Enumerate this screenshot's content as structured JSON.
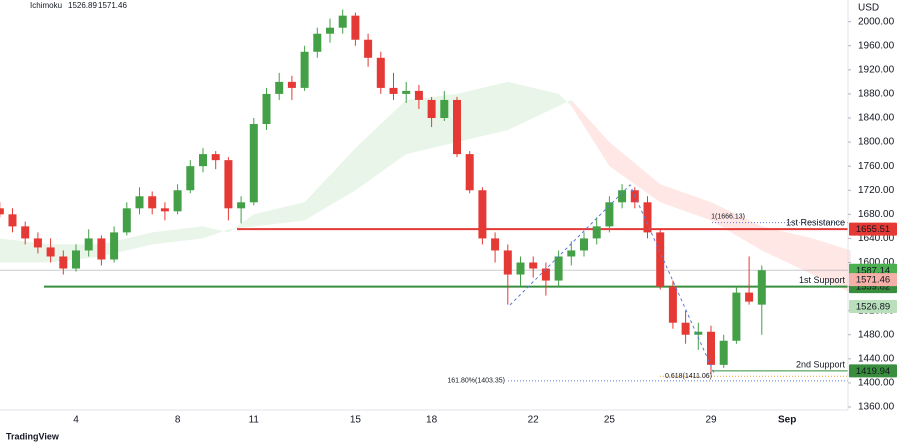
{
  "chart_data": {
    "type": "candlestick",
    "header": {
      "indicator": "Ichimoku",
      "values": [
        1526.89,
        1571.46
      ],
      "colors": [
        "#66bb6a",
        "#f28b82"
      ]
    },
    "currency": "USD",
    "watermark": "TradingView",
    "categories": [
      null,
      null,
      null,
      null,
      null,
      null,
      "4",
      null,
      null,
      null,
      null,
      null,
      null,
      null,
      "8",
      null,
      null,
      null,
      null,
      null,
      "11",
      null,
      null,
      null,
      null,
      null,
      null,
      null,
      "15",
      null,
      null,
      null,
      null,
      null,
      "18",
      null,
      null,
      null,
      null,
      null,
      null,
      null,
      "22",
      null,
      null,
      null,
      null,
      null,
      "25",
      null,
      null,
      null,
      null,
      null,
      null,
      null,
      "29",
      null,
      null,
      null,
      null,
      null,
      "Sep"
    ],
    "open": [
      1690,
      1680,
      1660,
      1640,
      1625,
      1610,
      1590,
      1620,
      1640,
      1605,
      1650,
      1690,
      1710,
      1690,
      1685,
      1720,
      1760,
      1780,
      1770,
      1690,
      1700,
      1830,
      1880,
      1900,
      1890,
      1950,
      1980,
      1990,
      2010,
      1970,
      1940,
      1890,
      1880,
      1885,
      1870,
      1840,
      1870,
      1780,
      1720,
      1640,
      1620,
      1580,
      1600,
      1590,
      1570,
      1610,
      1620,
      1640,
      1660,
      1700,
      1720,
      1700,
      1650,
      1560,
      1500,
      1480,
      1485,
      1430,
      1470,
      1550,
      1530,
      null,
      null
    ],
    "high": [
      1700,
      1690,
      1668,
      1650,
      1640,
      1620,
      1630,
      1655,
      1645,
      1660,
      1700,
      1725,
      1718,
      1700,
      1730,
      1770,
      1790,
      1785,
      1775,
      1710,
      1840,
      1890,
      1915,
      1910,
      1960,
      1990,
      2005,
      2020,
      2015,
      1980,
      1950,
      1915,
      1900,
      1895,
      1875,
      1885,
      1875,
      1785,
      1725,
      1650,
      1630,
      1610,
      1610,
      1600,
      1620,
      1635,
      1650,
      1675,
      1710,
      1730,
      1725,
      1710,
      1655,
      1570,
      1520,
      1500,
      1495,
      1480,
      1560,
      1610,
      1595,
      null,
      null
    ],
    "low": [
      1675,
      1650,
      1630,
      1615,
      1600,
      1580,
      1585,
      1610,
      1595,
      1600,
      1645,
      1680,
      1680,
      1670,
      1680,
      1715,
      1750,
      1755,
      1670,
      1665,
      1695,
      1820,
      1870,
      1870,
      1885,
      1940,
      1965,
      1980,
      1960,
      1925,
      1880,
      1870,
      1865,
      1855,
      1825,
      1835,
      1775,
      1715,
      1630,
      1600,
      1530,
      1560,
      1575,
      1545,
      1560,
      1595,
      1610,
      1630,
      1650,
      1690,
      1690,
      1640,
      1555,
      1490,
      1465,
      1455,
      1415,
      1425,
      1465,
      1530,
      1480,
      null,
      null
    ],
    "close": [
      1680,
      1660,
      1640,
      1625,
      1610,
      1590,
      1620,
      1640,
      1605,
      1650,
      1690,
      1710,
      1690,
      1685,
      1720,
      1760,
      1780,
      1770,
      1690,
      1700,
      1830,
      1880,
      1900,
      1890,
      1950,
      1980,
      1990,
      2010,
      1970,
      1940,
      1890,
      1880,
      1885,
      1870,
      1840,
      1870,
      1780,
      1720,
      1640,
      1620,
      1580,
      1600,
      1590,
      1570,
      1610,
      1620,
      1640,
      1660,
      1700,
      1720,
      1700,
      1650,
      1560,
      1500,
      1480,
      1485,
      1430,
      1470,
      1550,
      1535,
      1587.14,
      null,
      null
    ],
    "up_color": "#43a047",
    "down_color": "#e53935",
    "ylim": [
      1355,
      2036
    ],
    "yticks": [
      {
        "value": 1360,
        "label": "1360.00"
      },
      {
        "value": 1400,
        "label": "1400.00"
      },
      {
        "value": 1440,
        "label": "1440.00"
      },
      {
        "value": 1480,
        "label": "1480.00"
      },
      {
        "value": 1520,
        "label": "1520.00"
      },
      {
        "value": 1560,
        "label": "1560.00"
      },
      {
        "value": 1600,
        "label": "1600.00"
      },
      {
        "value": 1640,
        "label": "1640.00"
      },
      {
        "value": 1680,
        "label": "1680.00"
      },
      {
        "value": 1720,
        "label": "1720.00"
      },
      {
        "value": 1760,
        "label": "1760.00"
      },
      {
        "value": 1800,
        "label": "1800.00"
      },
      {
        "value": 1840,
        "label": "1840.00"
      },
      {
        "value": 1880,
        "label": "1880.00"
      },
      {
        "value": 1920,
        "label": "1920.00"
      },
      {
        "value": 1960,
        "label": "1960.00"
      },
      {
        "value": 2000,
        "label": "2000.00"
      }
    ],
    "cloud": {
      "x": [
        0,
        4,
        8,
        12,
        16,
        18,
        20,
        24,
        28,
        32,
        36,
        40,
        44,
        45,
        48,
        52,
        56,
        60,
        64,
        67
      ],
      "span_a": [
        1640,
        1630,
        1630,
        1650,
        1660,
        1650,
        1680,
        1700,
        1790,
        1870,
        1880,
        1900,
        1880,
        1860,
        1760,
        1700,
        1670,
        1620,
        1580,
        1550
      ],
      "span_b": [
        1600,
        1600,
        1610,
        1630,
        1640,
        1655,
        1660,
        1670,
        1720,
        1780,
        1800,
        1820,
        1860,
        1870,
        1800,
        1730,
        1700,
        1660,
        1640,
        1620
      ],
      "bull_color": "#4caf50",
      "bear_color": "#f44336"
    },
    "levels": [
      {
        "label": "1st Resistance",
        "value": 1655.51,
        "color": "#e53935"
      },
      {
        "label": "1st Support",
        "value": 1559.82,
        "color": "#388e3c"
      },
      {
        "label": "2nd Support",
        "value": 1419.94,
        "color": "#388e3c"
      }
    ],
    "annotations": [
      {
        "label": "1(1666.13)",
        "value": 1666.13,
        "color": "#5b7bd5"
      },
      {
        "label": "0.618(1411.06)",
        "value": 1411.06,
        "color": "#f0a030"
      },
      {
        "label": "161.80%(1403.35)",
        "value": 1403.35,
        "color": "#5b7bd5"
      }
    ],
    "last_price_color": "#4caf50"
  }
}
